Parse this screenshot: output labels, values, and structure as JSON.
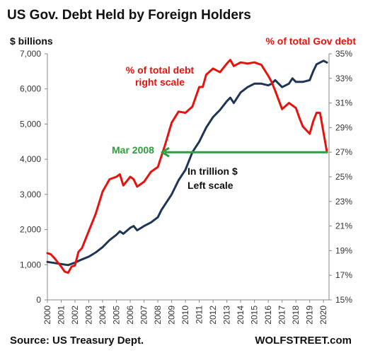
{
  "chart_data": {
    "type": "line",
    "title": "US Gov. Debt Held by Foreign Holders",
    "left_axis_label": "$ billions",
    "right_axis_label": "% of total Gov debt",
    "x_ticks": [
      "2000",
      "2001",
      "2002",
      "2003",
      "2004",
      "2005",
      "2006",
      "2007",
      "2008",
      "2009",
      "2010",
      "2011",
      "2012",
      "2013",
      "2014",
      "2015",
      "2016",
      "2017",
      "2018",
      "2019",
      "2020"
    ],
    "y_left_ticks": [
      "0",
      "1,000",
      "2,000",
      "3,000",
      "4,000",
      "5,000",
      "6,000",
      "7,000"
    ],
    "y_right_ticks": [
      "15%",
      "17%",
      "19%",
      "21%",
      "23%",
      "25%",
      "27%",
      "29%",
      "31%",
      "33%",
      "35%"
    ],
    "y_left_range": [
      0,
      7000
    ],
    "y_right_range": [
      15,
      35
    ],
    "x_range": [
      2000,
      2020.4
    ],
    "grid": false,
    "series": [
      {
        "axis": "left",
        "color": "#1f3554",
        "points": [
          [
            2000,
            1080
          ],
          [
            2000.5,
            1050
          ],
          [
            2001,
            1020
          ],
          [
            2001.5,
            990
          ],
          [
            2002,
            1060
          ],
          [
            2002.5,
            1150
          ],
          [
            2003,
            1230
          ],
          [
            2003.5,
            1350
          ],
          [
            2004,
            1500
          ],
          [
            2004.5,
            1700
          ],
          [
            2005,
            1850
          ],
          [
            2005.25,
            1950
          ],
          [
            2005.5,
            1880
          ],
          [
            2006,
            2050
          ],
          [
            2006.25,
            2100
          ],
          [
            2006.5,
            1980
          ],
          [
            2007,
            2100
          ],
          [
            2007.5,
            2200
          ],
          [
            2008,
            2350
          ],
          [
            2008.25,
            2550
          ],
          [
            2008.5,
            2700
          ],
          [
            2009,
            3000
          ],
          [
            2009.5,
            3400
          ],
          [
            2010,
            3700
          ],
          [
            2010.5,
            4200
          ],
          [
            2011,
            4500
          ],
          [
            2011.5,
            4900
          ],
          [
            2012,
            5200
          ],
          [
            2012.5,
            5400
          ],
          [
            2013,
            5650
          ],
          [
            2013.25,
            5750
          ],
          [
            2013.5,
            5600
          ],
          [
            2014,
            5900
          ],
          [
            2014.5,
            6050
          ],
          [
            2015,
            6150
          ],
          [
            2015.5,
            6150
          ],
          [
            2016,
            6100
          ],
          [
            2016.25,
            6150
          ],
          [
            2016.5,
            6250
          ],
          [
            2017,
            6050
          ],
          [
            2017.5,
            6150
          ],
          [
            2017.75,
            6300
          ],
          [
            2018,
            6200
          ],
          [
            2018.5,
            6200
          ],
          [
            2019,
            6250
          ],
          [
            2019.25,
            6500
          ],
          [
            2019.5,
            6700
          ],
          [
            2019.75,
            6750
          ],
          [
            2020,
            6800
          ],
          [
            2020.25,
            6750
          ]
        ]
      },
      {
        "axis": "right",
        "color": "#e8120c",
        "points": [
          [
            2000,
            18.8
          ],
          [
            2000.25,
            18.7
          ],
          [
            2000.5,
            18.4
          ],
          [
            2001,
            17.7
          ],
          [
            2001.25,
            17.3
          ],
          [
            2001.5,
            17.2
          ],
          [
            2001.75,
            17.7
          ],
          [
            2002,
            17.8
          ],
          [
            2002.25,
            18.9
          ],
          [
            2002.5,
            19.2
          ],
          [
            2003,
            20.6
          ],
          [
            2003.5,
            22.0
          ],
          [
            2004,
            23.8
          ],
          [
            2004.5,
            24.8
          ],
          [
            2005,
            25.0
          ],
          [
            2005.25,
            25.2
          ],
          [
            2005.5,
            24.3
          ],
          [
            2006,
            25.0
          ],
          [
            2006.25,
            24.8
          ],
          [
            2006.5,
            24.2
          ],
          [
            2007,
            24.6
          ],
          [
            2007.5,
            25.4
          ],
          [
            2008,
            25.8
          ],
          [
            2008.5,
            27.5
          ],
          [
            2009,
            29.4
          ],
          [
            2009.5,
            30.3
          ],
          [
            2010,
            30.2
          ],
          [
            2010.5,
            30.7
          ],
          [
            2011,
            32.3
          ],
          [
            2011.25,
            32.3
          ],
          [
            2011.5,
            33.3
          ],
          [
            2012,
            33.8
          ],
          [
            2012.5,
            33.5
          ],
          [
            2013,
            34.2
          ],
          [
            2013.25,
            34.5
          ],
          [
            2013.5,
            34.0
          ],
          [
            2014,
            34.3
          ],
          [
            2014.5,
            34.2
          ],
          [
            2015,
            34.3
          ],
          [
            2015.5,
            34.1
          ],
          [
            2016,
            33.2
          ],
          [
            2016.25,
            32.7
          ],
          [
            2016.5,
            32.0
          ],
          [
            2017,
            30.5
          ],
          [
            2017.5,
            31.0
          ],
          [
            2018,
            30.6
          ],
          [
            2018.25,
            29.8
          ],
          [
            2018.5,
            29.1
          ],
          [
            2019,
            28.5
          ],
          [
            2019.25,
            29.5
          ],
          [
            2019.5,
            30.2
          ],
          [
            2019.75,
            30.2
          ],
          [
            2020,
            28.6
          ],
          [
            2020.25,
            27.0
          ]
        ]
      }
    ],
    "annotations": {
      "pct_label_line1": "% of total debt",
      "pct_label_line2": "right scale",
      "trillion_label_line1": "In trillion $",
      "trillion_label_line2": "Left scale",
      "marker_label": "Mar 2008"
    },
    "marker": {
      "from_x": 2008.2,
      "to_x": 2020.3,
      "y_left": 4200,
      "color": "#2e9e3c"
    }
  },
  "footer": {
    "source": "Source: US Treasury Dept.",
    "brand": "WOLFSTREET.com"
  }
}
